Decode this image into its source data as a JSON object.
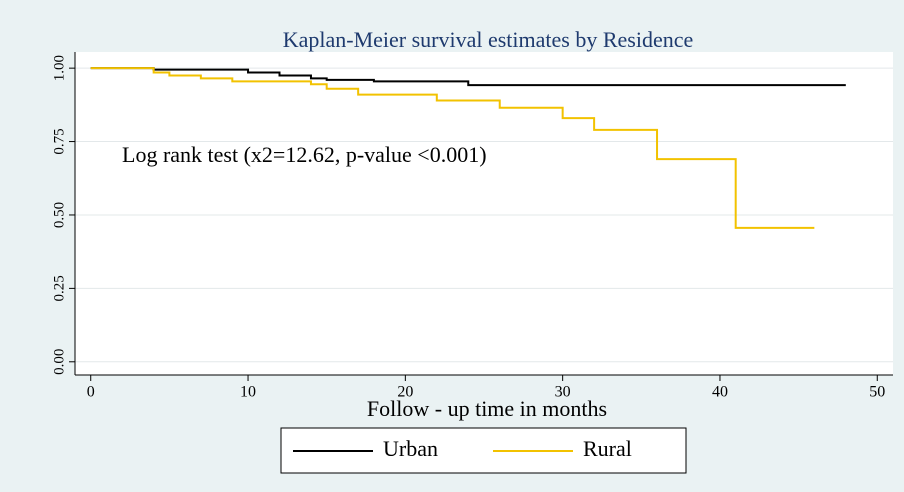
{
  "chart_data": {
    "type": "step",
    "title": "Kaplan-Meier survival estimates by Residence",
    "x_label": "Follow - up  time in months",
    "annotation": "Log rank test (x2=12.62, p-value <0.001)",
    "xlim": [
      -1,
      51
    ],
    "ylim": [
      -0.045,
      1.055
    ],
    "xticks": [
      0,
      10,
      20,
      30,
      40,
      50
    ],
    "yticks": [
      {
        "value": 0,
        "label": "0.00"
      },
      {
        "value": 0.25,
        "label": "0.25"
      },
      {
        "value": 0.5,
        "label": "0.50"
      },
      {
        "value": 0.75,
        "label": "0.75"
      },
      {
        "value": 1,
        "label": "1.00"
      }
    ],
    "grid": true,
    "legend": "bottom",
    "series": [
      {
        "name": "Urban",
        "color": "#000000",
        "x": [
          0,
          4,
          10,
          12,
          14,
          15,
          18,
          24,
          48
        ],
        "values": [
          1,
          0.995,
          0.985,
          0.975,
          0.965,
          0.96,
          0.955,
          0.942,
          0.942
        ]
      },
      {
        "name": "Rural",
        "color": "#f2c200",
        "x": [
          0,
          4,
          5,
          7,
          9,
          14,
          15,
          17,
          22,
          26,
          30,
          32,
          36,
          41,
          46
        ],
        "values": [
          1,
          0.985,
          0.975,
          0.965,
          0.955,
          0.945,
          0.93,
          0.91,
          0.89,
          0.865,
          0.83,
          0.79,
          0.69,
          0.456,
          0.456
        ]
      }
    ]
  }
}
